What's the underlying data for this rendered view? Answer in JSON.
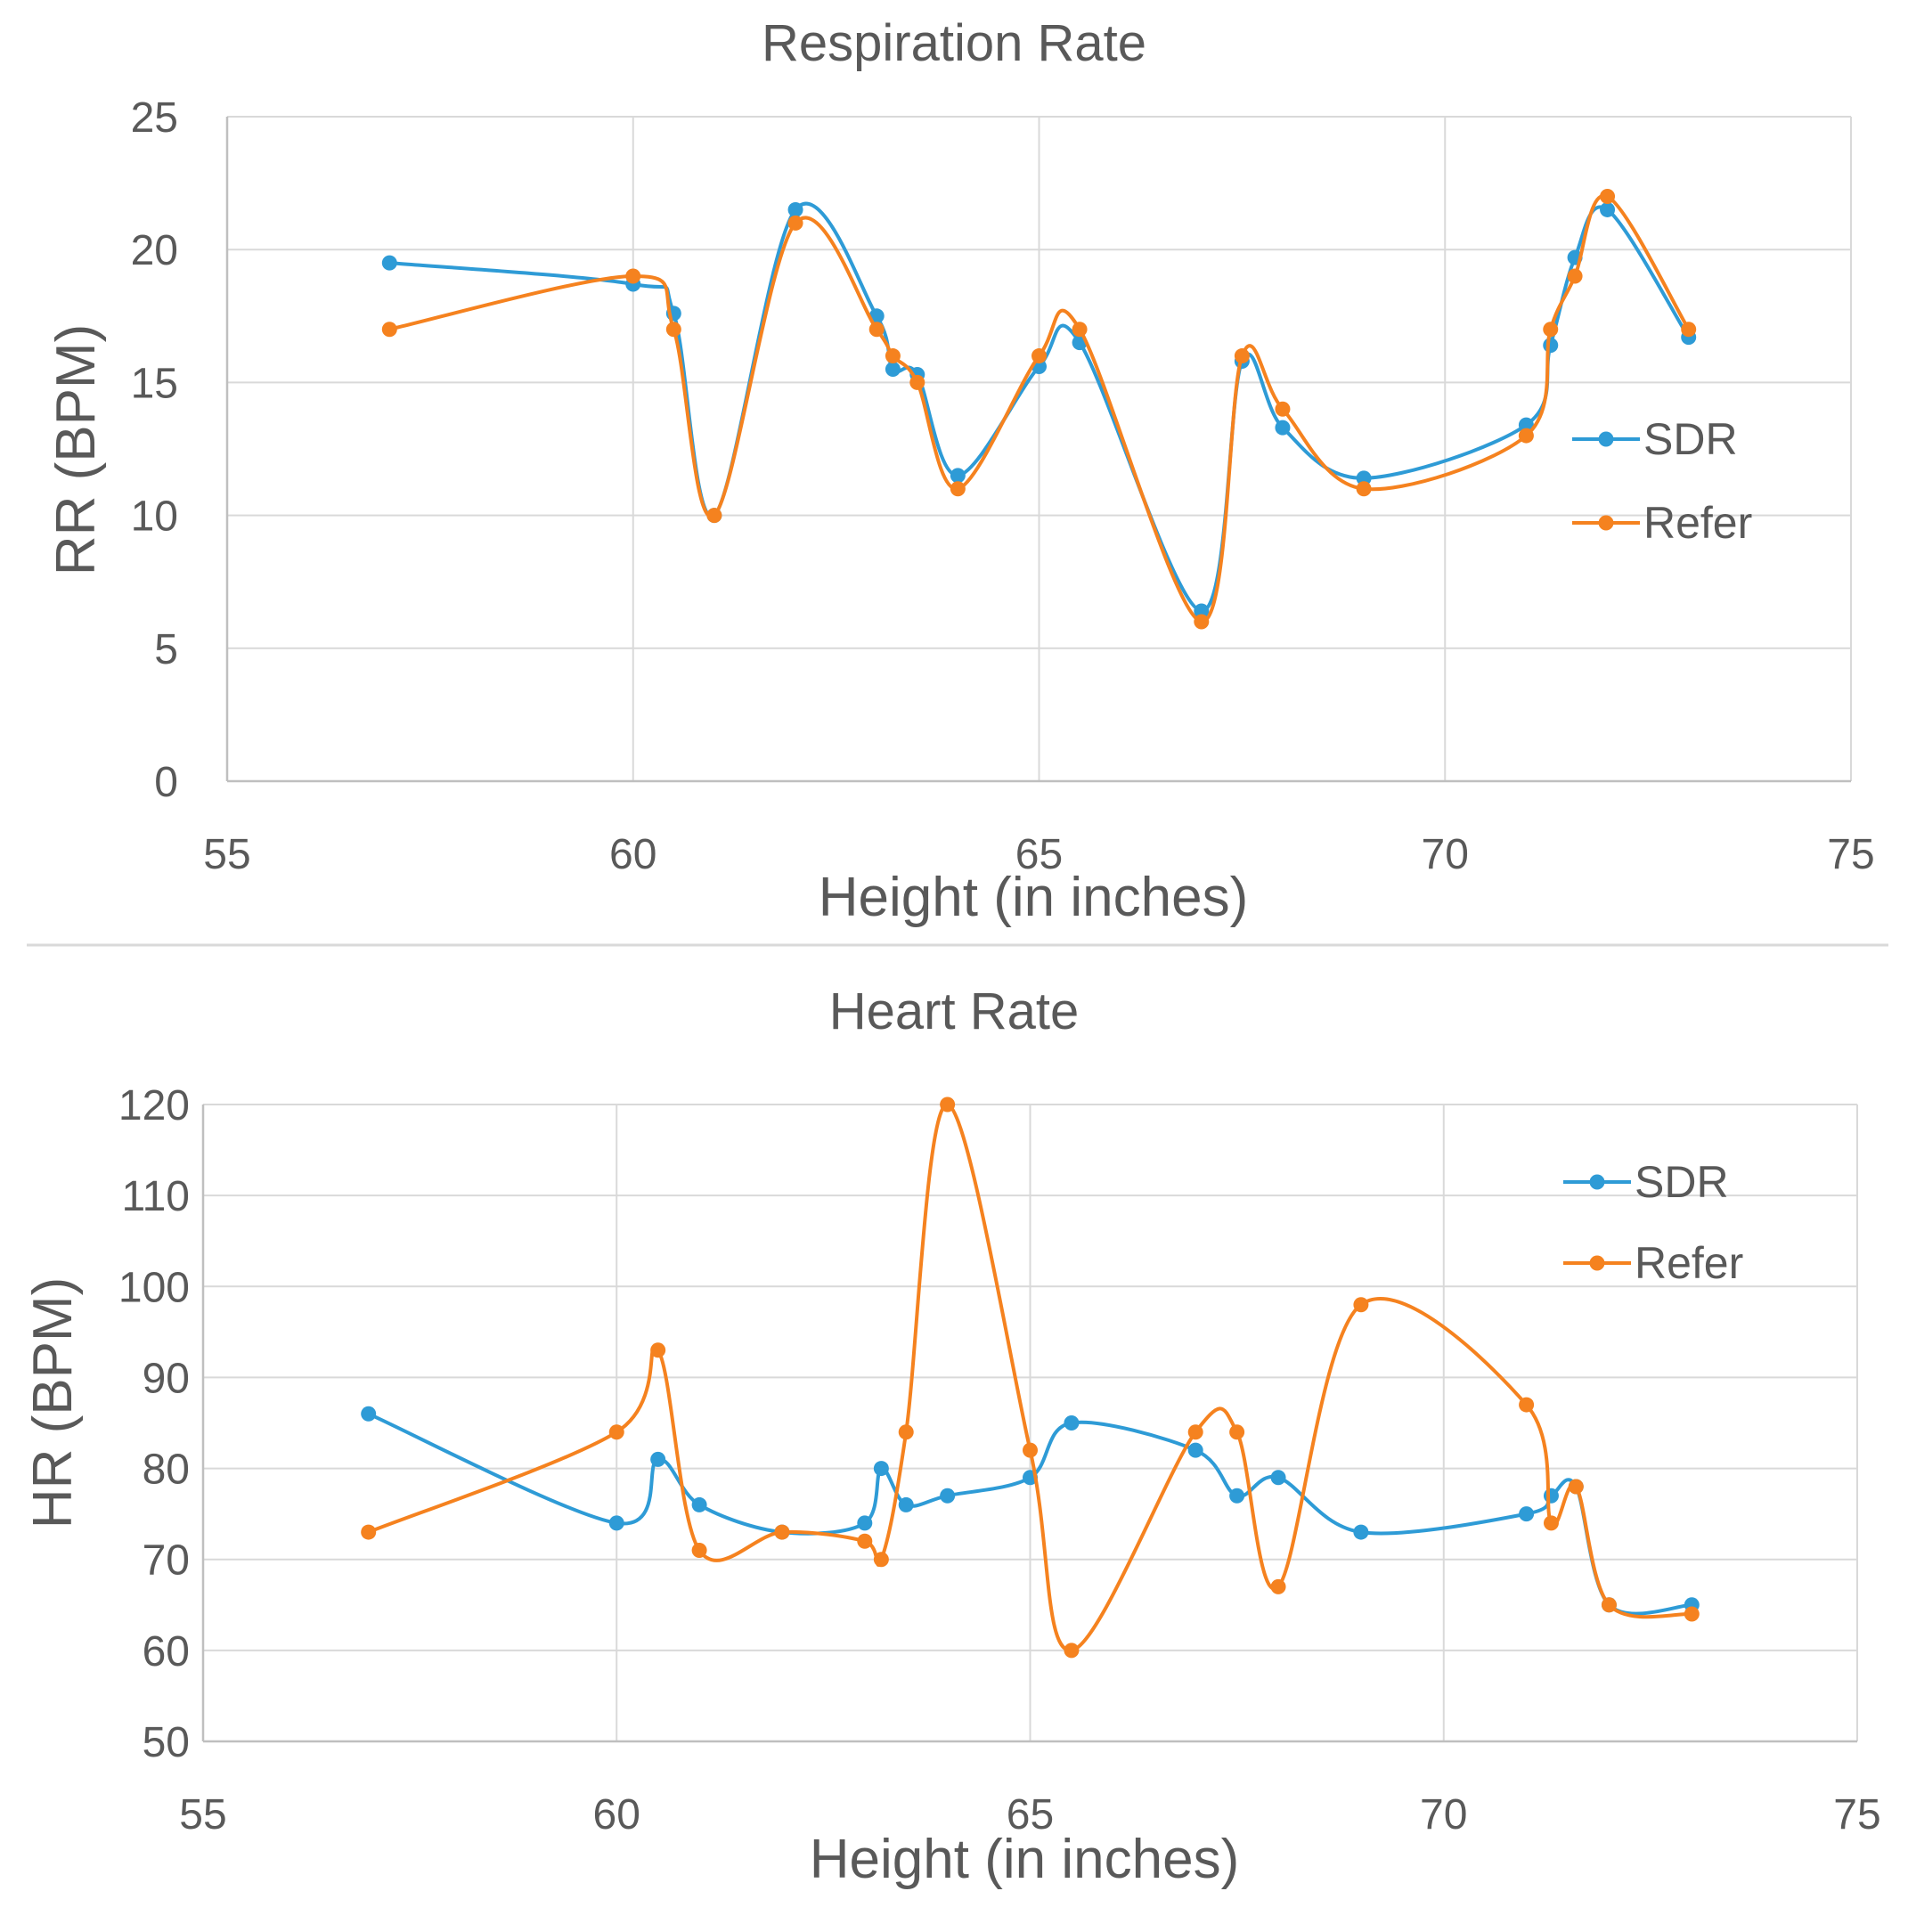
{
  "chart_data": [
    {
      "type": "line",
      "smooth": true,
      "title": "Respiration Rate",
      "xlabel": "Height (in inches)",
      "ylabel": "RR (BPM)",
      "xlim": [
        55,
        75
      ],
      "ylim": [
        0,
        25
      ],
      "xticks": [
        55,
        60,
        65,
        70,
        75
      ],
      "yticks": [
        0,
        5,
        10,
        15,
        20,
        25
      ],
      "grid": true,
      "legend_position": "right",
      "series": [
        {
          "name": "SDR",
          "color": "#2e9bd6",
          "x": [
            57,
            60,
            60.5,
            61,
            62,
            63,
            63.2,
            63.5,
            64,
            65,
            65.5,
            67,
            67.5,
            68,
            69,
            71,
            71.3,
            71.6,
            72,
            73
          ],
          "y": [
            19.5,
            18.7,
            17.6,
            10,
            21.5,
            17.5,
            15.5,
            15.3,
            11.5,
            15.6,
            16.5,
            6.4,
            15.8,
            13.3,
            11.4,
            13.4,
            16.4,
            19.7,
            21.5,
            16.7
          ]
        },
        {
          "name": "Refer",
          "color": "#f5821f",
          "x": [
            57,
            60,
            60.5,
            61,
            62,
            63,
            63.2,
            63.5,
            64,
            65,
            65.5,
            67,
            67.5,
            68,
            69,
            71,
            71.3,
            71.6,
            72,
            73
          ],
          "y": [
            17,
            19,
            17,
            10,
            21,
            17,
            16,
            15,
            11,
            16,
            17,
            6,
            16,
            14,
            11,
            13,
            17,
            19,
            22,
            17
          ]
        }
      ]
    },
    {
      "type": "line",
      "smooth": true,
      "title": "Heart Rate",
      "xlabel": "Height (in inches)",
      "ylabel": "HR (BPM)",
      "xlim": [
        55,
        75
      ],
      "ylim": [
        50,
        120
      ],
      "xticks": [
        55,
        60,
        65,
        70,
        75
      ],
      "yticks": [
        50,
        60,
        70,
        80,
        90,
        100,
        110,
        120
      ],
      "grid": true,
      "legend_position": "top-right",
      "series": [
        {
          "name": "SDR",
          "color": "#2e9bd6",
          "x": [
            57,
            60,
            60.5,
            61,
            62,
            63,
            63.2,
            63.5,
            64,
            65,
            65.5,
            67,
            67.5,
            68,
            69,
            71,
            71.3,
            71.6,
            72,
            73
          ],
          "y": [
            86,
            74,
            81,
            76,
            73,
            74,
            80,
            76,
            77,
            79,
            85,
            82,
            77,
            79,
            73,
            75,
            77,
            78,
            65,
            65
          ]
        },
        {
          "name": "Refer",
          "color": "#f5821f",
          "x": [
            57,
            60,
            60.5,
            61,
            62,
            63,
            63.2,
            63.5,
            64,
            65,
            65.5,
            67,
            67.5,
            68,
            69,
            71,
            71.3,
            71.6,
            72,
            73
          ],
          "y": [
            73,
            84,
            93,
            71,
            73,
            72,
            70,
            84,
            120,
            82,
            60,
            84,
            84,
            67,
            98,
            87,
            74,
            78,
            65,
            64
          ]
        }
      ]
    }
  ]
}
